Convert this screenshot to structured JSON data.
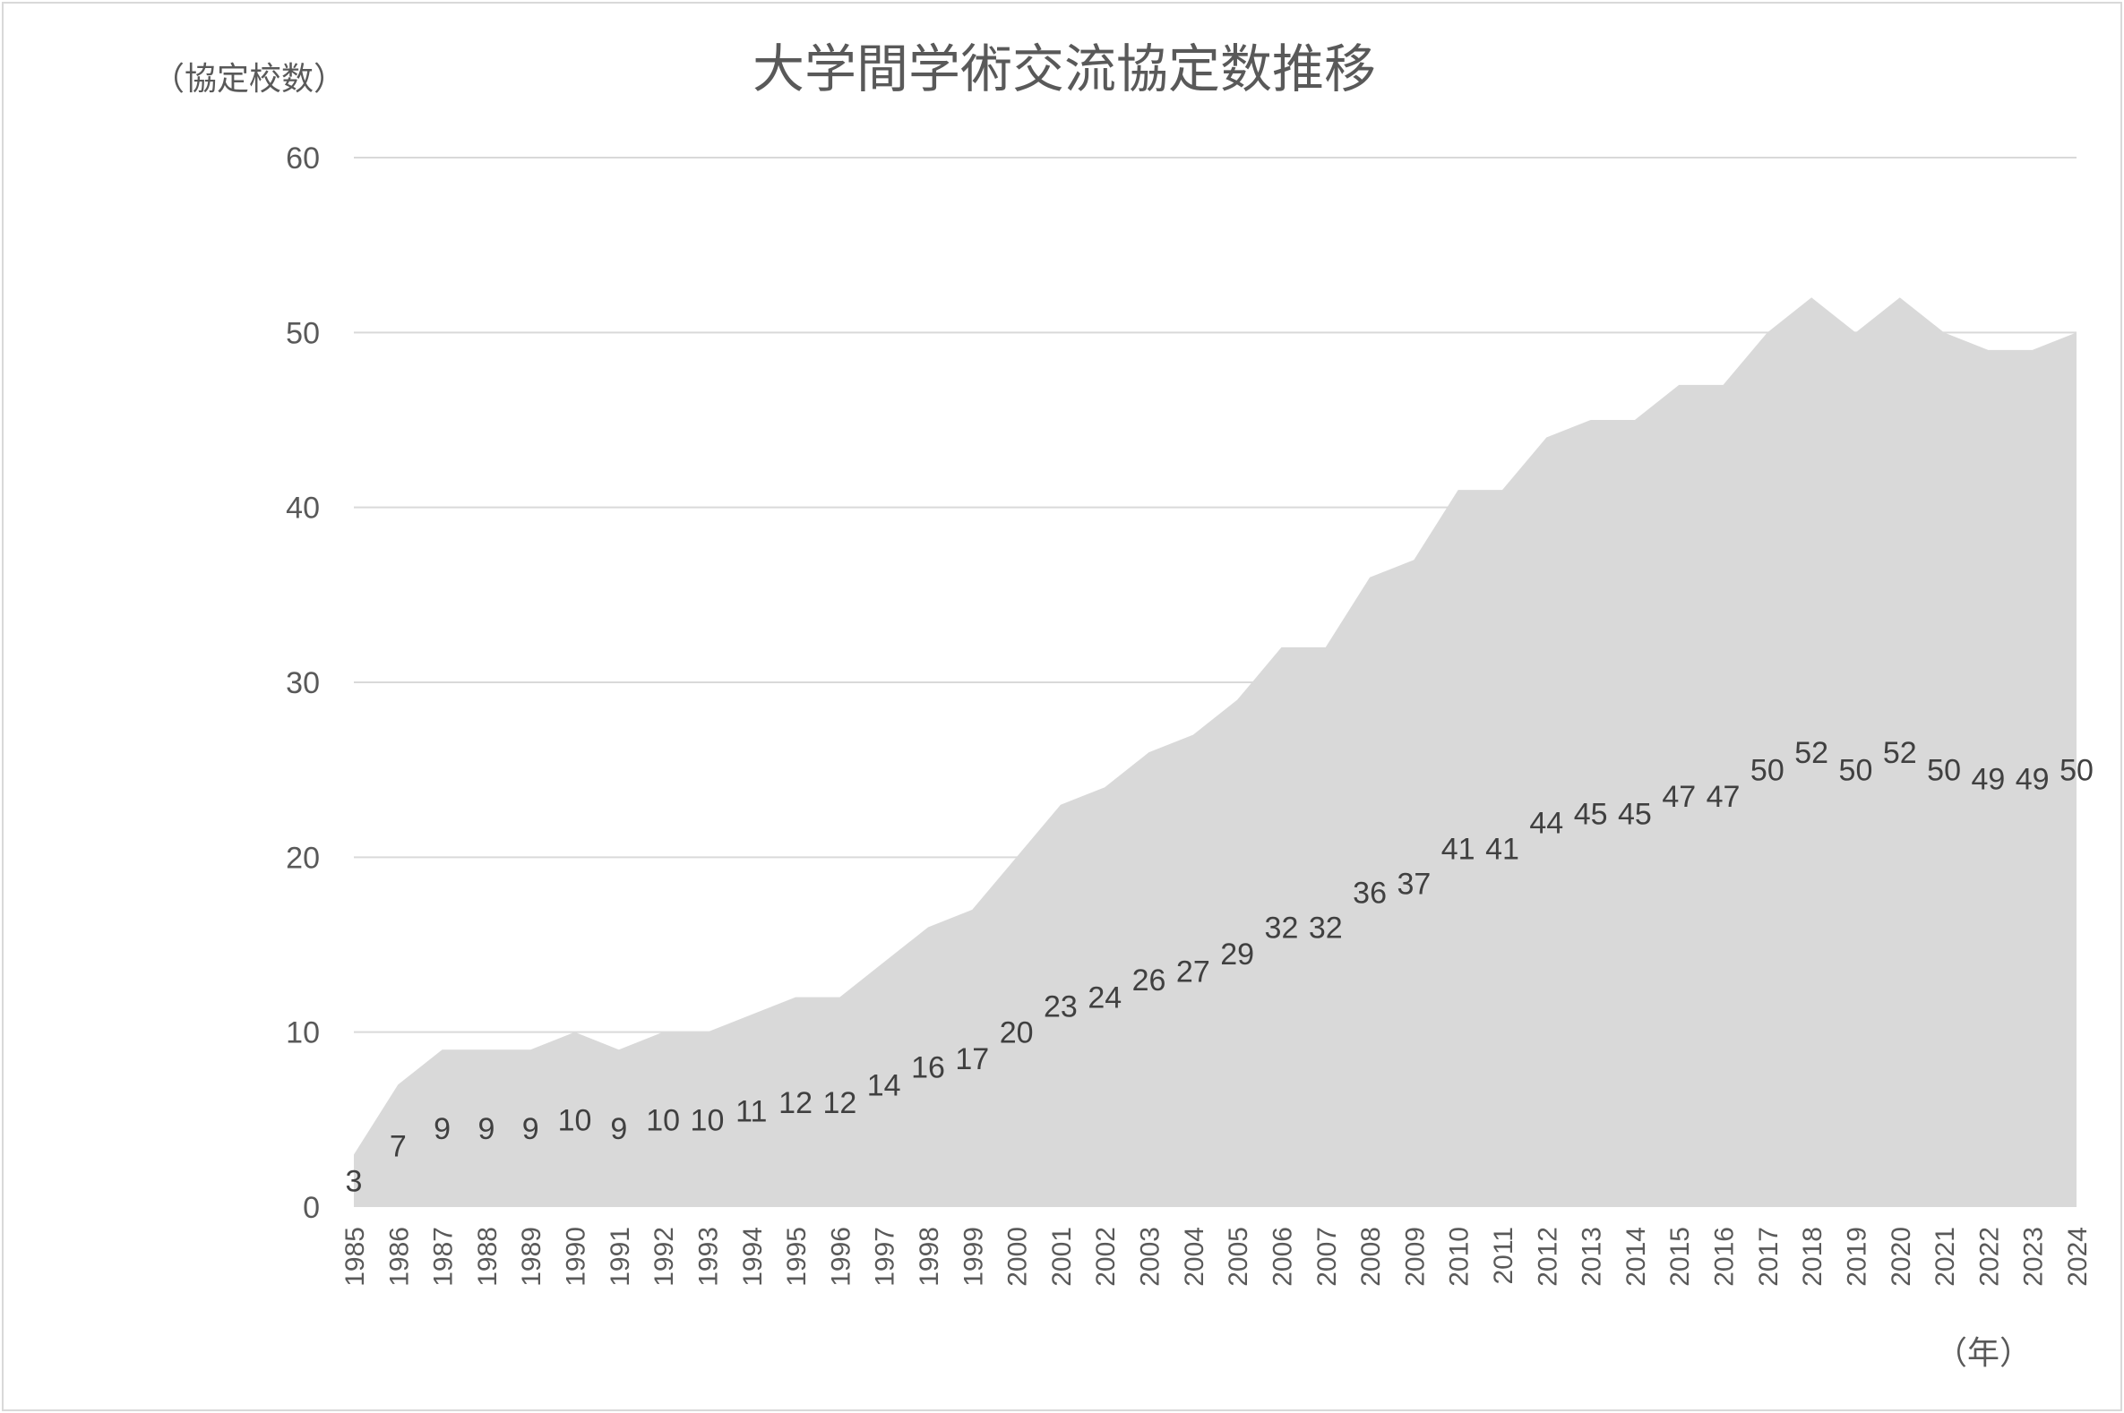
{
  "chart_data": {
    "type": "area",
    "title": "大学間学術交流協定数推移",
    "ylabel": "（協定校数）",
    "xlabel": "（年）",
    "ylim": [
      0,
      60
    ],
    "yticks": [
      0,
      10,
      20,
      30,
      40,
      50,
      60
    ],
    "grid": true,
    "legend": "none",
    "colors": {
      "area": "#d9d9d9",
      "grid": "#d9d9d9",
      "text": "#595959",
      "labels": "#404040"
    },
    "categories": [
      "1985",
      "1986",
      "1987",
      "1988",
      "1989",
      "1990",
      "1991",
      "1992",
      "1993",
      "1994",
      "1995",
      "1996",
      "1997",
      "1998",
      "1999",
      "2000",
      "2001",
      "2002",
      "2003",
      "2004",
      "2005",
      "2006",
      "2007",
      "2008",
      "2009",
      "2010",
      "2011",
      "2012",
      "2013",
      "2014",
      "2015",
      "2016",
      "2017",
      "2018",
      "2019",
      "2020",
      "2021",
      "2022",
      "2023",
      "2024"
    ],
    "values": [
      3,
      7,
      9,
      9,
      9,
      10,
      9,
      10,
      10,
      11,
      12,
      12,
      14,
      16,
      17,
      20,
      23,
      24,
      26,
      27,
      29,
      32,
      32,
      36,
      37,
      41,
      41,
      44,
      45,
      45,
      47,
      47,
      50,
      52,
      50,
      52,
      50,
      49,
      49,
      50
    ],
    "data_labels": true
  }
}
